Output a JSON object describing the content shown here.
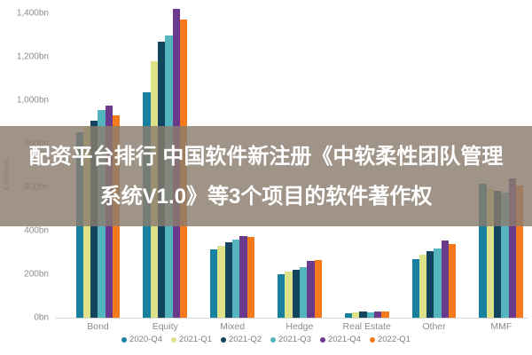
{
  "overlay": {
    "line1": "配资平台排行 中国软件新注册《中软柔性团队管理",
    "line2": "系统V1.0》等3个项目的软件著作权",
    "band_color": "rgba(139,124,110,0.82)",
    "text_color": "#ffffff"
  },
  "chart_data": {
    "type": "bar",
    "title": "",
    "ylabel": "€ billions",
    "ylim": [
      0,
      1400
    ],
    "grid": false,
    "legend_position": "bottom",
    "y_ticks": [
      {
        "value": 0,
        "label": "0bn"
      },
      {
        "value": 200,
        "label": "200bn"
      },
      {
        "value": 400,
        "label": "400bn"
      },
      {
        "value": 600,
        "label": "600bn"
      },
      {
        "value": 800,
        "label": "800bn"
      },
      {
        "value": 1000,
        "label": "1,000bn"
      },
      {
        "value": 1200,
        "label": "1,200bn"
      },
      {
        "value": 1400,
        "label": "1,400bn"
      }
    ],
    "categories": [
      "Bond",
      "Equity",
      "Mixed",
      "Hedge",
      "Real Estate",
      "Other",
      "MMF"
    ],
    "series": [
      {
        "name": "2020-Q4",
        "color": "#17819f",
        "values": [
          855,
          1035,
          315,
          200,
          22,
          270,
          615
        ]
      },
      {
        "name": "2021-Q1",
        "color": "#dde289",
        "values": [
          880,
          1180,
          330,
          212,
          23,
          290,
          590
        ]
      },
      {
        "name": "2021-Q2",
        "color": "#14455f",
        "values": [
          905,
          1270,
          345,
          222,
          28,
          305,
          582
        ]
      },
      {
        "name": "2021-Q3",
        "color": "#54b5bf",
        "values": [
          955,
          1300,
          360,
          232,
          25,
          318,
          575
        ]
      },
      {
        "name": "2021-Q4",
        "color": "#6a3a8d",
        "values": [
          975,
          1420,
          375,
          260,
          29,
          355,
          640
        ]
      },
      {
        "name": "2022-Q1",
        "color": "#f5791d",
        "values": [
          930,
          1370,
          370,
          265,
          30,
          340,
          610
        ]
      }
    ]
  }
}
